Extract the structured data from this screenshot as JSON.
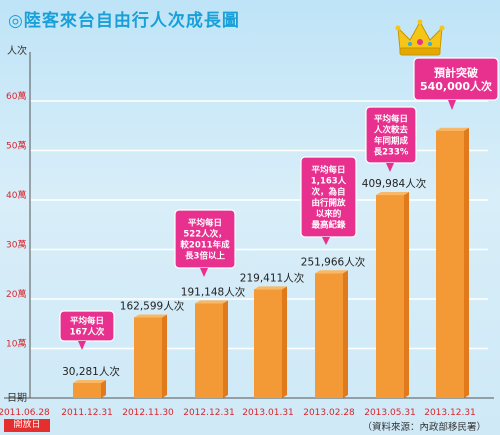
{
  "title": "◎陸客來台自由行人次成長圖",
  "source": "（資料來源：內政部移民署）",
  "start_tag": "開放日",
  "colors": {
    "bar": "#f39a37",
    "bar_dark": "#e07a1a",
    "gridline": "#ffffff",
    "callout": "#e8308f",
    "title": "#1aa0d8",
    "axis_red": "#d9262d"
  },
  "icons": [
    "crown-icon"
  ],
  "chart_data": {
    "type": "bar",
    "title": "◎陸客來台自由行人次成長圖",
    "ylabel": "人次",
    "xlabel": "日期",
    "ylim": [
      0,
      60
    ],
    "yunit": "萬",
    "yticks": [
      "10萬",
      "20萬",
      "30萬",
      "40萬",
      "50萬",
      "60萬"
    ],
    "ytick_values": [
      10,
      20,
      30,
      40,
      50,
      60
    ],
    "x_ticks": [
      "2011.06.28",
      "2011.12.31",
      "2012.11.30",
      "2012.12.31",
      "2013.01.31",
      "2013.02.28",
      "2013.05.31",
      "2013.12.31"
    ],
    "categories": [
      "2011.12.31",
      "2012.11.30",
      "2012.12.31",
      "2013.01.31",
      "2013.02.28",
      "2013.05.31",
      "2013.12.31"
    ],
    "values": [
      3.0281,
      16.2599,
      19.1148,
      21.9411,
      25.1966,
      40.9984,
      54.0
    ],
    "data_labels": [
      "30,281人次",
      "162,599人次",
      "191,148人次",
      "219,411人次",
      "251,966人次",
      "409,984人次",
      ""
    ],
    "grid": true,
    "annotations": [
      {
        "bar": 0,
        "lines": [
          "平均每日",
          "167人次"
        ]
      },
      {
        "bar": 2,
        "lines": [
          "平均每日",
          "522人次，",
          "較2011年成",
          "長3倍以上"
        ]
      },
      {
        "bar": 4,
        "lines": [
          "平均每日",
          "1,163人",
          "次，為自",
          "由行開放",
          "以來的",
          "最高紀錄"
        ]
      },
      {
        "bar": 5,
        "lines": [
          "平均每日",
          "人次較去",
          "年同期成",
          "長233%"
        ]
      },
      {
        "bar": 6,
        "lines": [
          "預計突破",
          "540,000人次"
        ]
      }
    ]
  }
}
